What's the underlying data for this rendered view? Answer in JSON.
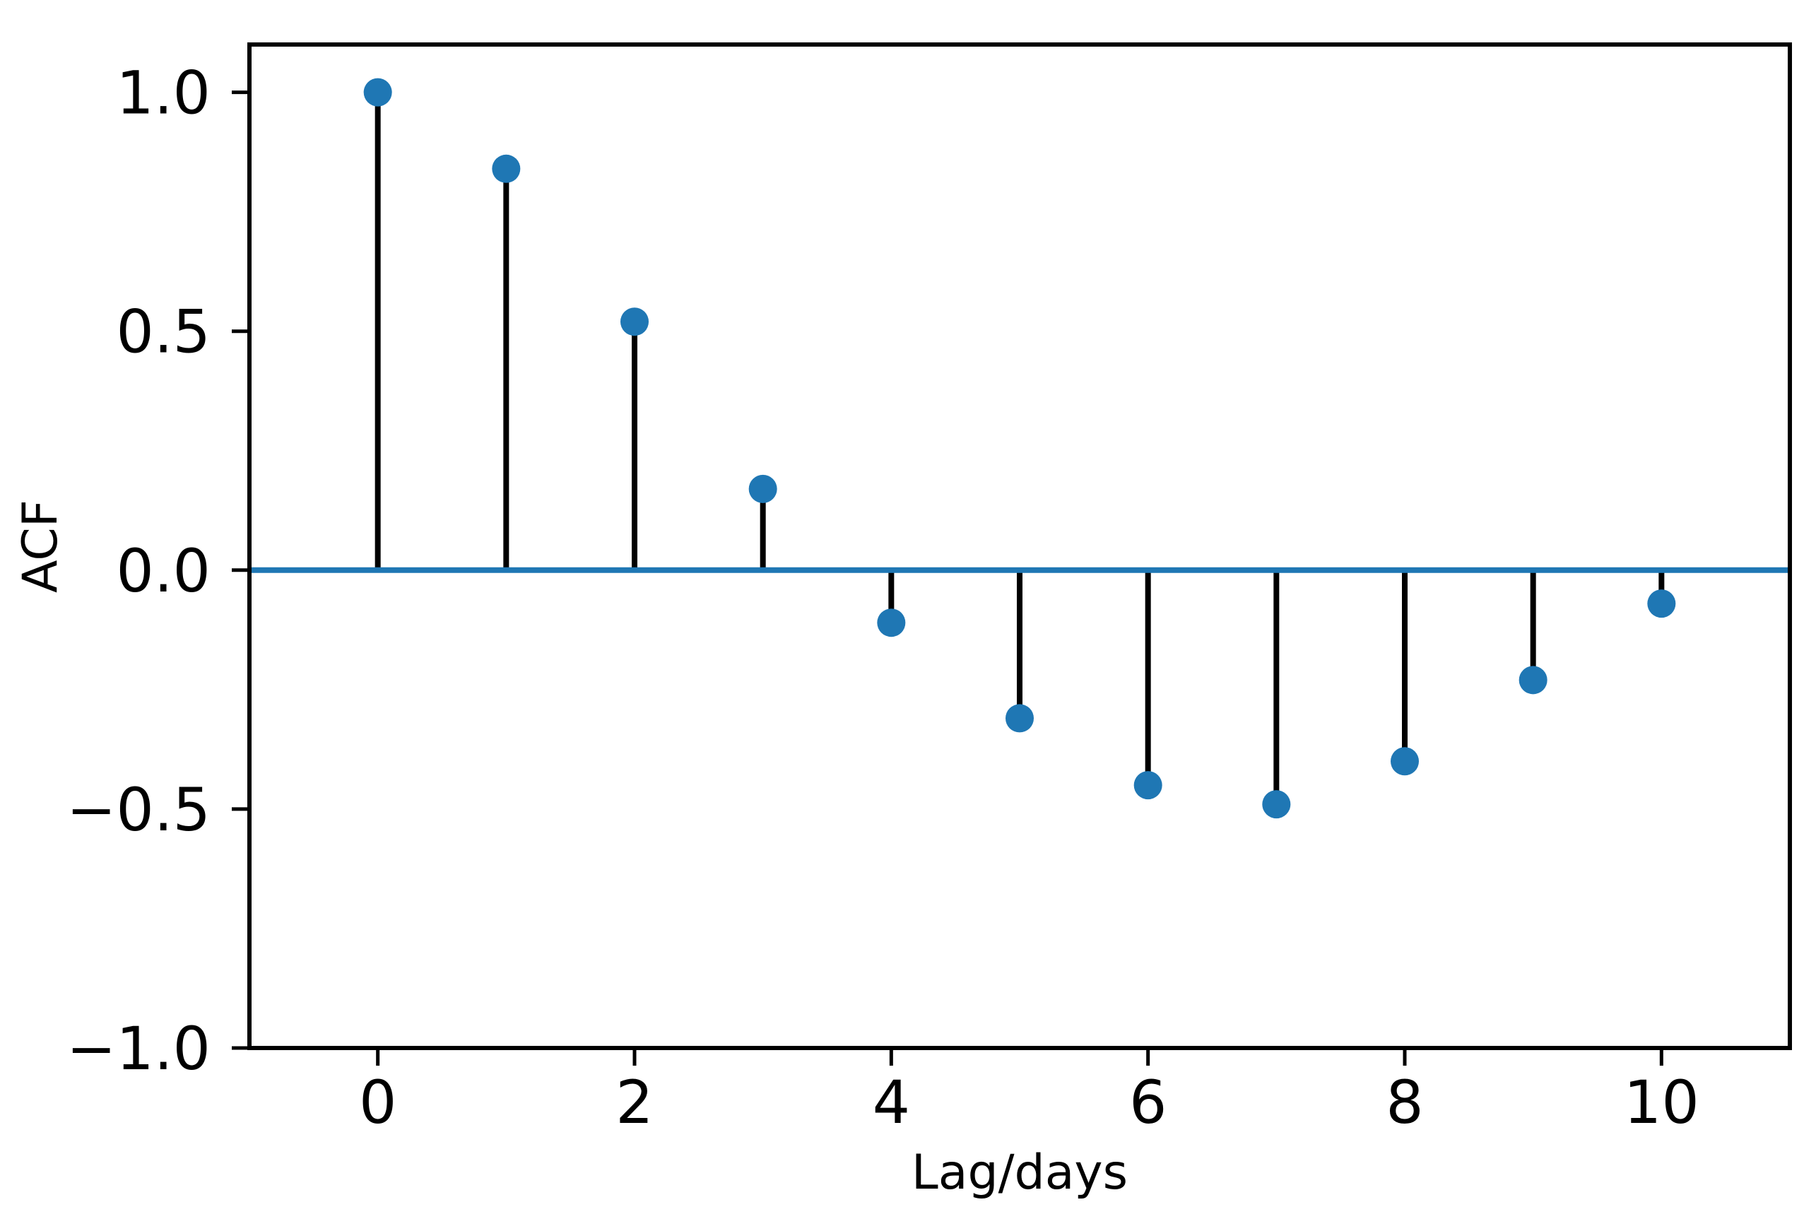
{
  "chart_data": {
    "type": "stem",
    "title": "",
    "xlabel": "Lag/days",
    "ylabel": "ACF",
    "x": [
      0,
      1,
      2,
      3,
      4,
      5,
      6,
      7,
      8,
      9,
      10
    ],
    "values": [
      1.0,
      0.84,
      0.52,
      0.17,
      -0.11,
      -0.31,
      -0.45,
      -0.49,
      -0.4,
      -0.23,
      -0.07
    ],
    "baseline_y": 0.0,
    "xlim": [
      -1,
      11
    ],
    "ylim": [
      -1.0,
      1.1
    ],
    "xticks": [
      0,
      2,
      4,
      6,
      8,
      10
    ],
    "xtick_labels": [
      "0",
      "2",
      "4",
      "6",
      "8",
      "10"
    ],
    "yticks": [
      1.0,
      0.5,
      0.0,
      -0.5,
      -1.0
    ],
    "ytick_labels": [
      "1.0",
      "0.5",
      "0.0",
      "−0.5",
      "−1.0"
    ],
    "grid": false,
    "legend": null,
    "colors": {
      "stem": "#000000",
      "marker": "#1f77b4",
      "baseline": "#1f77b4",
      "axis": "#000000",
      "text": "#000000",
      "background": "#ffffff"
    }
  }
}
